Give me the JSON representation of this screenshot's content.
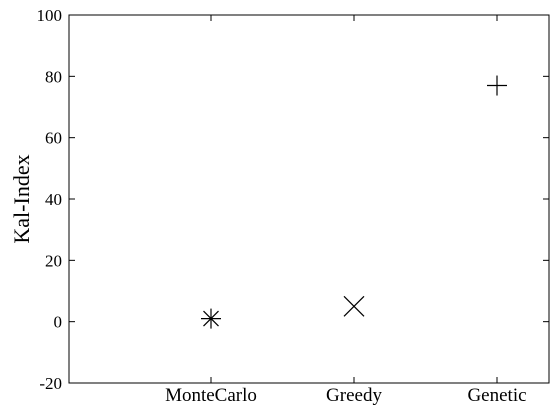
{
  "chart_data": {
    "type": "scatter",
    "title": "",
    "xlabel": "",
    "ylabel": "Kal-Index",
    "ylim": [
      -20,
      100
    ],
    "y_ticks": [
      -20,
      0,
      20,
      40,
      60,
      80,
      100
    ],
    "y_tick_labels": [
      "-20",
      "0",
      "20",
      "40",
      "60",
      "80",
      "100"
    ],
    "categories": [
      "MonteCarlo",
      "Greedy",
      "Genetic"
    ],
    "grid": false,
    "legend": "none",
    "points": [
      {
        "category": "MonteCarlo",
        "y": 1,
        "marker": "asterisk"
      },
      {
        "category": "Greedy",
        "y": 5,
        "marker": "x"
      },
      {
        "category": "Genetic",
        "y": 77,
        "marker": "plus"
      }
    ]
  }
}
